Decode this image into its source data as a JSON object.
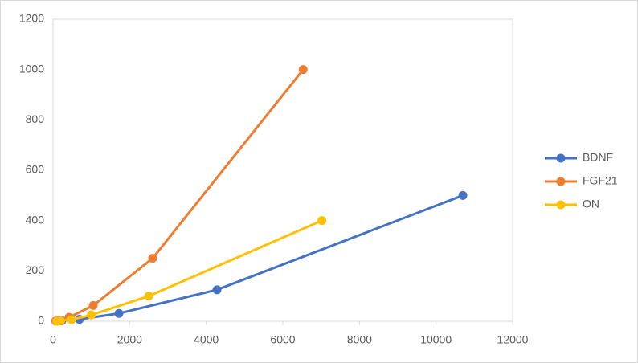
{
  "chart_data": {
    "type": "scatter",
    "lines": true,
    "series": [
      {
        "name": "BDNF",
        "color": "#4472c4",
        "x": [
          110,
          230,
          690,
          1720,
          4280,
          10700
        ],
        "values": [
          0.49,
          1.95,
          7.8,
          31.25,
          125,
          500
        ]
      },
      {
        "name": "FGF21",
        "color": "#ed7d31",
        "x": [
          70,
          150,
          420,
          1050,
          2600,
          6530
        ],
        "values": [
          0.98,
          3.9,
          15.6,
          62.5,
          250,
          1000
        ]
      },
      {
        "name": "ON",
        "color": "#ffc000",
        "x": [
          100,
          200,
          480,
          1000,
          2500,
          7020
        ],
        "values": [
          0.39,
          1.56,
          6.25,
          25,
          100,
          400
        ]
      }
    ],
    "xlim": [
      0,
      12000
    ],
    "xticks": [
      0,
      2000,
      4000,
      6000,
      8000,
      10000,
      12000
    ],
    "ylim": [
      0,
      1200
    ],
    "yticks": [
      0,
      200,
      400,
      600,
      800,
      1000,
      1200
    ],
    "grid": false,
    "legend": "right"
  }
}
